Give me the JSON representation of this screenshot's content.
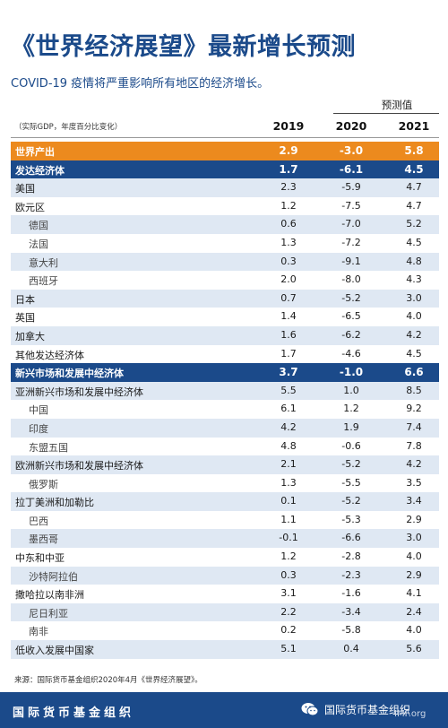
{
  "header": {
    "title": "《世界经济展望》最新增长预测",
    "subtitle": "COVID-19 疫情将严重影响所有地区的经济增长。",
    "forecast_label": "预测值",
    "unit_note": "（实际GDP，年度百分比变化）",
    "years": [
      "2019",
      "2020",
      "2021"
    ]
  },
  "rows": [
    {
      "name": "世界产出",
      "v": [
        "2.9",
        "-3.0",
        "5.8"
      ],
      "type": "world"
    },
    {
      "name": "发达经济体",
      "v": [
        "1.7",
        "-6.1",
        "4.5"
      ],
      "type": "group"
    },
    {
      "name": "美国",
      "v": [
        "2.3",
        "-5.9",
        "4.7"
      ],
      "type": "main",
      "shade": true
    },
    {
      "name": "欧元区",
      "v": [
        "1.2",
        "-7.5",
        "4.7"
      ],
      "type": "main",
      "shade": false
    },
    {
      "name": "德国",
      "v": [
        "0.6",
        "-7.0",
        "5.2"
      ],
      "type": "sub",
      "shade": true
    },
    {
      "name": "法国",
      "v": [
        "1.3",
        "-7.2",
        "4.5"
      ],
      "type": "sub",
      "shade": false
    },
    {
      "name": "意大利",
      "v": [
        "0.3",
        "-9.1",
        "4.8"
      ],
      "type": "sub",
      "shade": true
    },
    {
      "name": "西班牙",
      "v": [
        "2.0",
        "-8.0",
        "4.3"
      ],
      "type": "sub",
      "shade": false
    },
    {
      "name": "日本",
      "v": [
        "0.7",
        "-5.2",
        "3.0"
      ],
      "type": "main",
      "shade": true
    },
    {
      "name": "英国",
      "v": [
        "1.4",
        "-6.5",
        "4.0"
      ],
      "type": "main",
      "shade": false
    },
    {
      "name": "加拿大",
      "v": [
        "1.6",
        "-6.2",
        "4.2"
      ],
      "type": "main",
      "shade": true
    },
    {
      "name": "其他发达经济体",
      "v": [
        "1.7",
        "-4.6",
        "4.5"
      ],
      "type": "main",
      "shade": false
    },
    {
      "name": "新兴市场和发展中经济体",
      "v": [
        "3.7",
        "-1.0",
        "6.6"
      ],
      "type": "group"
    },
    {
      "name": "亚洲新兴市场和发展中经济体",
      "v": [
        "5.5",
        "1.0",
        "8.5"
      ],
      "type": "main",
      "shade": true
    },
    {
      "name": "中国",
      "v": [
        "6.1",
        "1.2",
        "9.2"
      ],
      "type": "sub",
      "shade": false
    },
    {
      "name": "印度",
      "v": [
        "4.2",
        "1.9",
        "7.4"
      ],
      "type": "sub",
      "shade": true
    },
    {
      "name": "东盟五国",
      "v": [
        "4.8",
        "-0.6",
        "7.8"
      ],
      "type": "sub",
      "shade": false
    },
    {
      "name": "欧洲新兴市场和发展中经济体",
      "v": [
        "2.1",
        "-5.2",
        "4.2"
      ],
      "type": "main",
      "shade": true
    },
    {
      "name": "俄罗斯",
      "v": [
        "1.3",
        "-5.5",
        "3.5"
      ],
      "type": "sub",
      "shade": false
    },
    {
      "name": "拉丁美洲和加勒比",
      "v": [
        "0.1",
        "-5.2",
        "3.4"
      ],
      "type": "main",
      "shade": true
    },
    {
      "name": "巴西",
      "v": [
        "1.1",
        "-5.3",
        "2.9"
      ],
      "type": "sub",
      "shade": false
    },
    {
      "name": "墨西哥",
      "v": [
        "-0.1",
        "-6.6",
        "3.0"
      ],
      "type": "sub",
      "shade": true
    },
    {
      "name": "中东和中亚",
      "v": [
        "1.2",
        "-2.8",
        "4.0"
      ],
      "type": "main",
      "shade": false
    },
    {
      "name": "沙特阿拉伯",
      "v": [
        "0.3",
        "-2.3",
        "2.9"
      ],
      "type": "sub",
      "shade": true
    },
    {
      "name": "撒哈拉以南非洲",
      "v": [
        "3.1",
        "-1.6",
        "4.1"
      ],
      "type": "main",
      "shade": false
    },
    {
      "name": "尼日利亚",
      "v": [
        "2.2",
        "-3.4",
        "2.4"
      ],
      "type": "sub",
      "shade": true
    },
    {
      "name": "南非",
      "v": [
        "0.2",
        "-5.8",
        "4.0"
      ],
      "type": "sub",
      "shade": false
    },
    {
      "name": "低收入发展中国家",
      "v": [
        "5.1",
        "0.4",
        "5.6"
      ],
      "type": "main",
      "shade": true
    }
  ],
  "source": "来源：国际货币基金组织2020年4月《世界经济展望》。",
  "footer": {
    "org": "国际货币基金组织",
    "wechat_name": "国际货币基金组织",
    "url": "IMF.org",
    "wechat_icon": "wechat-icon"
  },
  "colors": {
    "brand_blue": "#1b4a8a",
    "world_orange": "#ec8a1e",
    "row_shade": "#dfe8f3"
  }
}
